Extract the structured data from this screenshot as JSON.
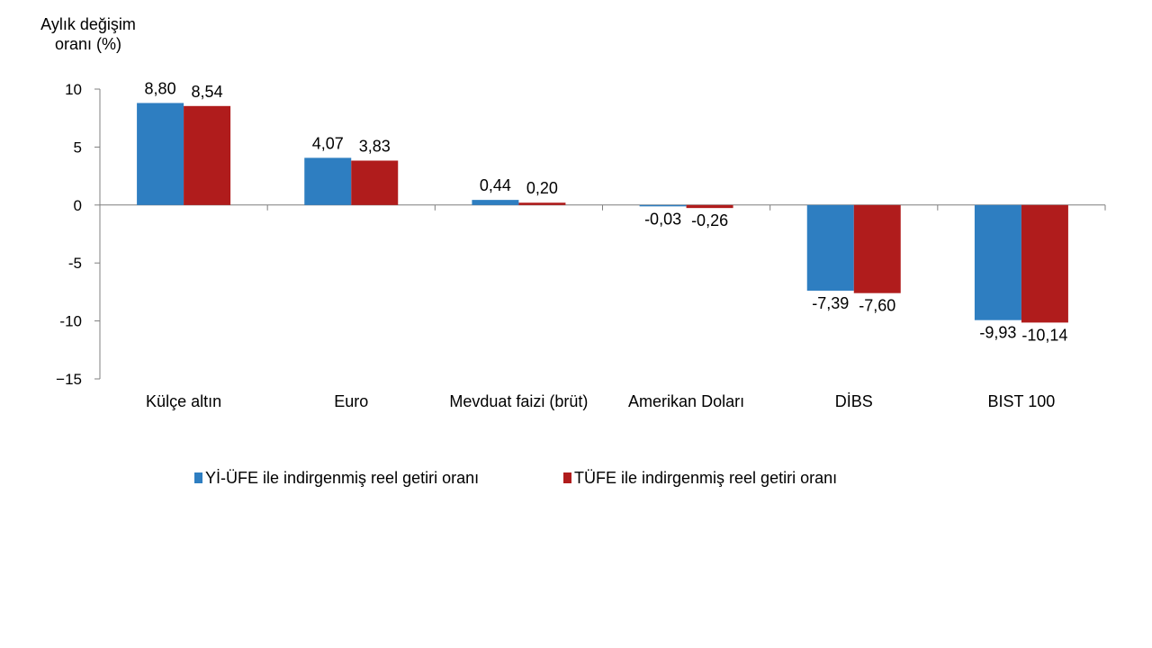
{
  "chart_data": {
    "type": "bar",
    "ylabel_lines": [
      "Aylık değişim",
      "oranı (%)"
    ],
    "ylim": [
      -15,
      10
    ],
    "yticks": [
      10,
      5,
      0,
      -5,
      -10,
      -15
    ],
    "ytick_labels": [
      "10",
      "5",
      "0",
      "-5",
      "-10",
      "−15"
    ],
    "categories": [
      "Külçe altın",
      "Euro",
      "Mevduat faizi (brüt)",
      "Amerikan Doları",
      "DİBS",
      "BIST 100"
    ],
    "series": [
      {
        "name": "Yİ-ÜFE ile indirgenmiş reel getiri oranı",
        "color": "#2e7ec1",
        "values": [
          8.8,
          4.07,
          0.44,
          -0.03,
          -7.39,
          -9.93
        ],
        "labels": [
          "8,80",
          "4,07",
          "0,44",
          "-0,03",
          "-7,39",
          "-9,93"
        ]
      },
      {
        "name": "TÜFE ile indirgenmiş reel getiri oranı",
        "color": "#b01c1c",
        "values": [
          8.54,
          3.83,
          0.2,
          -0.26,
          -7.6,
          -10.14
        ],
        "labels": [
          "8,54",
          "3,83",
          "0,20",
          "-0,26",
          "-7,60",
          "-10,14"
        ]
      }
    ],
    "legend_position": "bottom",
    "grid": false
  }
}
